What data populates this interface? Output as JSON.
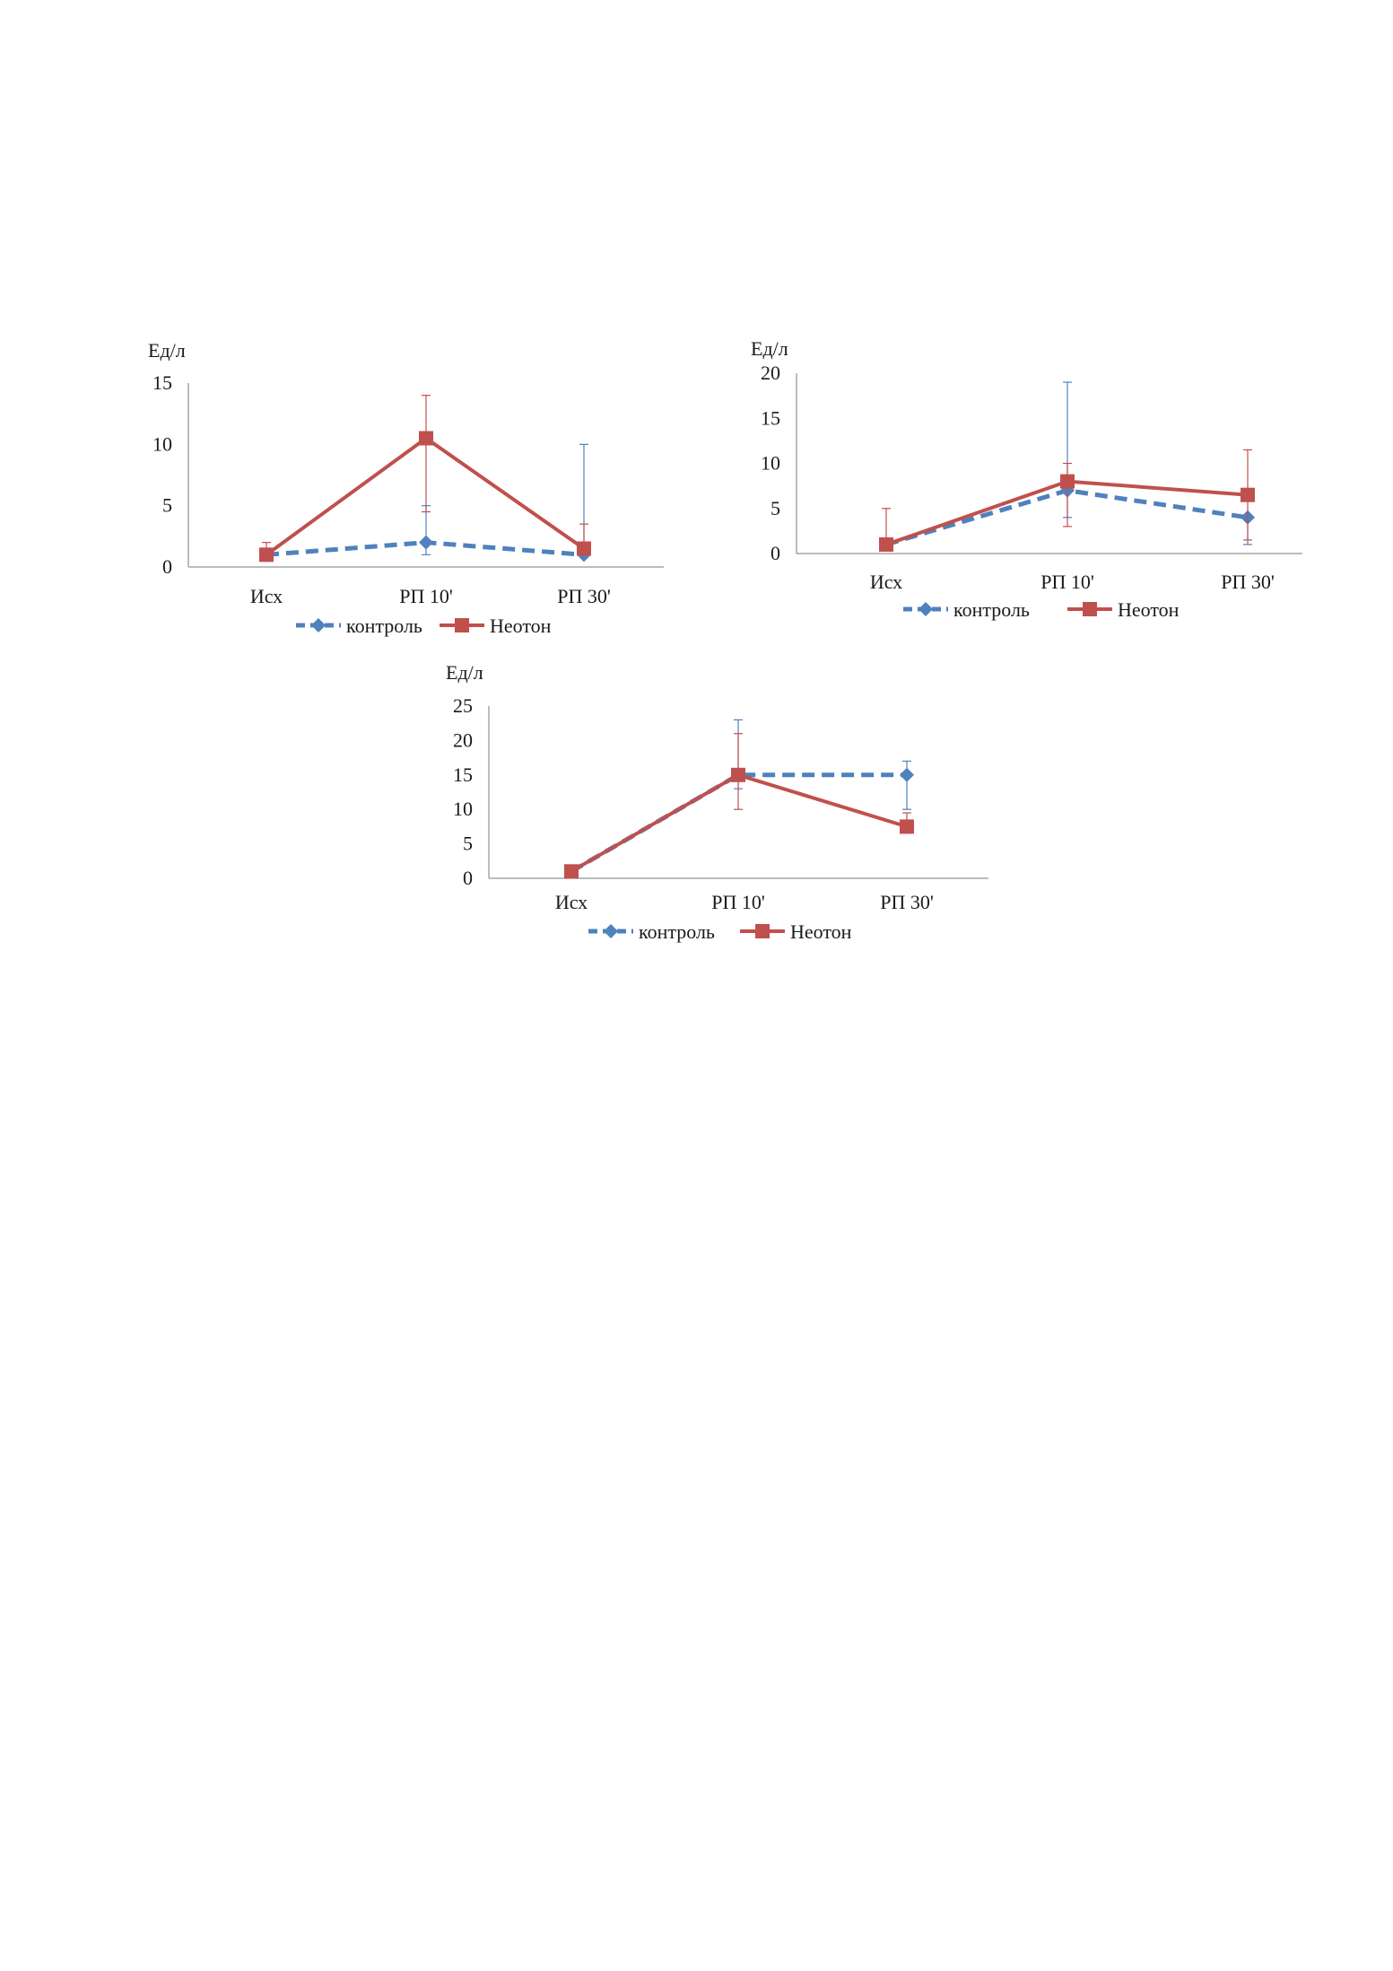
{
  "colors": {
    "control": "#4F81BD",
    "neoton": "#C0504D",
    "axis": "#A6A6A6"
  },
  "chart_data": [
    {
      "type": "line",
      "ylabel": "Ед/л",
      "ylim": [
        0,
        15
      ],
      "yticks": [
        0,
        5,
        10,
        15
      ],
      "categories": [
        "Исх",
        "РП 10'",
        "РП 30'"
      ],
      "legend_position": "bottom",
      "series": [
        {
          "name": "контроль",
          "values": [
            1,
            2,
            1
          ],
          "err_low": [
            0,
            1,
            0
          ],
          "err_high": [
            0.5,
            3,
            9
          ],
          "style": "dashed",
          "marker": "diamond"
        },
        {
          "name": "Неотон",
          "values": [
            1,
            10.5,
            1.5
          ],
          "err_low": [
            0,
            6,
            0
          ],
          "err_high": [
            1,
            3.5,
            2
          ],
          "style": "solid",
          "marker": "square"
        }
      ]
    },
    {
      "type": "line",
      "ylabel": "Ед/л",
      "ylim": [
        0,
        20
      ],
      "yticks": [
        0,
        5,
        10,
        15,
        20
      ],
      "categories": [
        "Исх",
        "РП 10'",
        "РП 30'"
      ],
      "legend_position": "bottom",
      "series": [
        {
          "name": "контроль",
          "values": [
            1,
            7,
            4
          ],
          "err_low": [
            0,
            3,
            3
          ],
          "err_high": [
            0,
            12,
            0
          ],
          "style": "dashed",
          "marker": "diamond"
        },
        {
          "name": "Неотон",
          "values": [
            1,
            8,
            6.5
          ],
          "err_low": [
            0,
            5,
            5
          ],
          "err_high": [
            4,
            2,
            5
          ],
          "style": "solid",
          "marker": "square"
        }
      ]
    },
    {
      "type": "line",
      "ylabel": "Ед/л",
      "ylim": [
        0,
        25
      ],
      "yticks": [
        0,
        5,
        10,
        15,
        20,
        25
      ],
      "categories": [
        "Исх",
        "РП 10'",
        "РП 30'"
      ],
      "legend_position": "bottom",
      "series": [
        {
          "name": "контроль",
          "values": [
            1,
            15,
            15
          ],
          "err_low": [
            0,
            2,
            5
          ],
          "err_high": [
            0,
            8,
            2
          ],
          "style": "dashed",
          "marker": "diamond"
        },
        {
          "name": "Неотон",
          "values": [
            1,
            15,
            7.5
          ],
          "err_low": [
            0,
            5,
            0
          ],
          "err_high": [
            0,
            6,
            2
          ],
          "style": "solid",
          "marker": "square"
        }
      ]
    }
  ]
}
